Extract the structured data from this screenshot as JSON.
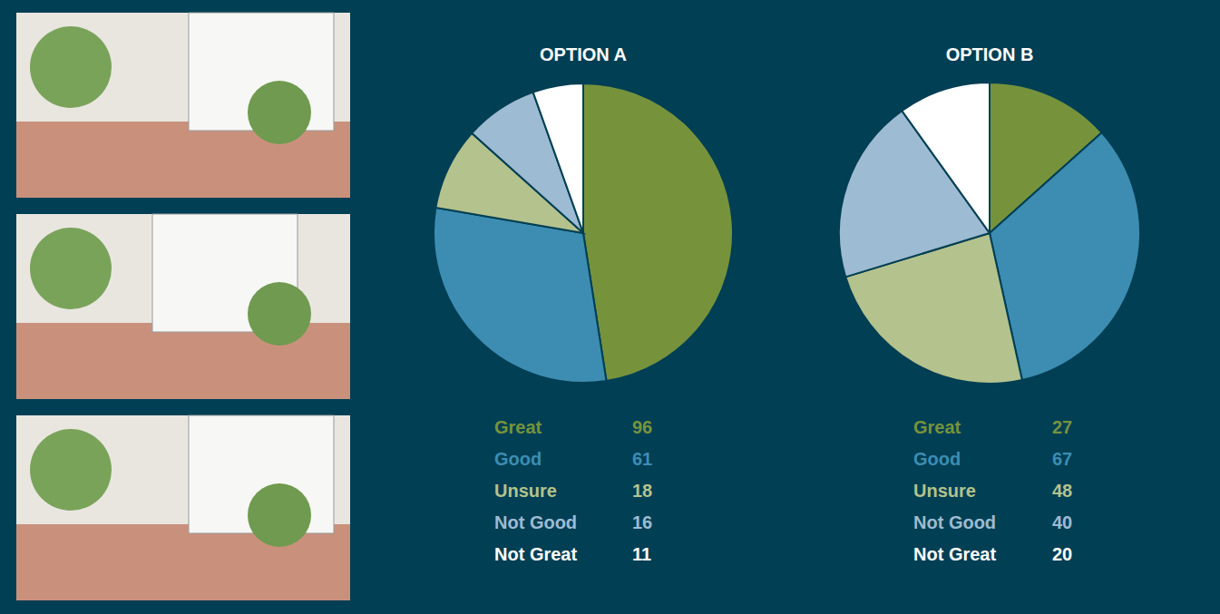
{
  "chart_data": [
    {
      "type": "pie",
      "title": "OPTION A",
      "categories": [
        "Great",
        "Good",
        "Unsure",
        "Not Good",
        "Not Great"
      ],
      "values": [
        96,
        61,
        18,
        16,
        11
      ],
      "colors": [
        "#76933c",
        "#3d8db2",
        "#b4c28d",
        "#9dbbd2",
        "#ffffff"
      ],
      "legend": "bottom",
      "data_labels": true
    },
    {
      "type": "pie",
      "title": "OPTION B",
      "categories": [
        "Great",
        "Good",
        "Unsure",
        "Not Good",
        "Not Great"
      ],
      "values": [
        27,
        67,
        48,
        40,
        20
      ],
      "colors": [
        "#76933c",
        "#3d8db2",
        "#b4c28d",
        "#9dbbd2",
        "#ffffff"
      ],
      "legend": "bottom",
      "data_labels": true
    }
  ]
}
